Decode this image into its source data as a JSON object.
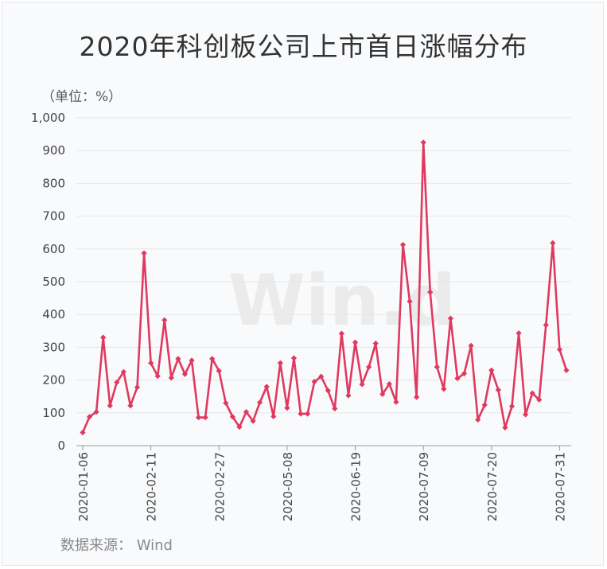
{
  "title": "2020年科创板公司上市首日涨幅分布",
  "unit_label": "（单位：%）",
  "source": "数据来源：  Wind",
  "watermark": "Win.d",
  "colors": {
    "line": "#e0395f",
    "marker": "#e0395f",
    "grid": "#e6e6e6",
    "axis": "#999999"
  },
  "chart_data": {
    "type": "line",
    "title": "2020年科创板公司上市首日涨幅分布",
    "ylabel": "（单位：%）",
    "xlabel": "",
    "ylim": [
      0,
      1000
    ],
    "yticks": [
      0,
      100,
      200,
      300,
      400,
      500,
      600,
      700,
      800,
      900,
      1000
    ],
    "ytick_labels": [
      "0",
      "100",
      "200",
      "300",
      "400",
      "500",
      "600",
      "700",
      "800",
      "900",
      "1,000"
    ],
    "x_tick_labels": [
      {
        "index": 0,
        "label": "2020-01-06"
      },
      {
        "index": 10,
        "label": "2020-02-11"
      },
      {
        "index": 20,
        "label": "2020-02-27"
      },
      {
        "index": 30,
        "label": "2020-05-08"
      },
      {
        "index": 40,
        "label": "2020-06-19"
      },
      {
        "index": 50,
        "label": "2020-07-09"
      },
      {
        "index": 60,
        "label": "2020-07-20"
      },
      {
        "index": 70,
        "label": "2020-07-31"
      }
    ],
    "grid": true,
    "legend": "none",
    "series": [
      {
        "values": [
          40,
          88,
          103,
          330,
          122,
          193,
          225,
          122,
          178,
          587,
          252,
          212,
          383,
          207,
          265,
          218,
          260,
          86,
          86,
          265,
          228,
          130,
          88,
          57,
          103,
          75,
          132,
          180,
          89,
          252,
          115,
          267,
          97,
          97,
          195,
          211,
          168,
          113,
          342,
          153,
          315,
          187,
          240,
          312,
          157,
          188,
          133,
          613,
          440,
          148,
          925,
          468,
          240,
          173,
          388,
          205,
          220,
          305,
          79,
          124,
          230,
          170,
          55,
          120,
          343,
          95,
          160,
          140,
          368,
          618,
          293,
          230
        ]
      }
    ]
  }
}
